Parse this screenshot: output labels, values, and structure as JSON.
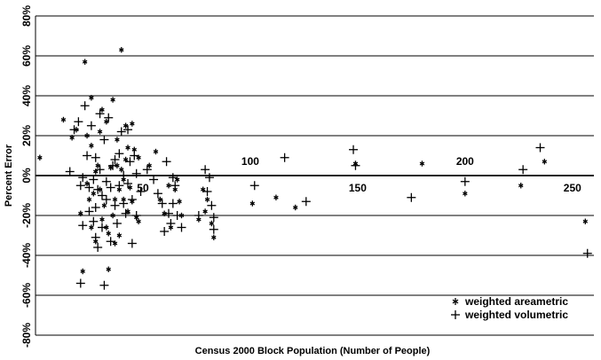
{
  "chart_data": {
    "type": "scatter",
    "xlabel": "Census 2000 Block Population (Number of People)",
    "ylabel": "Percent Error",
    "xlim": [
      0,
      260
    ],
    "ylim": [
      -80,
      80
    ],
    "x_ticks": [
      50,
      100,
      150,
      200,
      250
    ],
    "x_tick_labels": [
      "50",
      "100",
      "150",
      "200",
      "250"
    ],
    "y_ticks": [
      80,
      60,
      40,
      20,
      0,
      -20,
      -40,
      -60,
      -80
    ],
    "y_tick_labels": [
      "80%",
      "60%",
      "40%",
      "20%",
      "0%",
      "-20%",
      "-40%",
      "-60%",
      "-80%"
    ],
    "grid": true,
    "legend_position": "bottom-right",
    "series": [
      {
        "name": "weighted areametric",
        "marker": "asterisk",
        "points": [
          [
            2,
            9
          ],
          [
            13,
            28
          ],
          [
            17,
            19
          ],
          [
            19,
            23
          ],
          [
            21,
            -19
          ],
          [
            22,
            -48
          ],
          [
            23,
            57
          ],
          [
            24,
            20
          ],
          [
            24,
            -4
          ],
          [
            25,
            -12
          ],
          [
            26,
            15
          ],
          [
            26,
            39
          ],
          [
            26,
            -26
          ],
          [
            27,
            -9
          ],
          [
            28,
            -33
          ],
          [
            28,
            2
          ],
          [
            29,
            5
          ],
          [
            30,
            -7
          ],
          [
            30,
            22
          ],
          [
            31,
            33
          ],
          [
            31,
            -22
          ],
          [
            32,
            -15
          ],
          [
            33,
            27
          ],
          [
            33,
            -26
          ],
          [
            34,
            -47
          ],
          [
            34,
            -29
          ],
          [
            35,
            4
          ],
          [
            36,
            -20
          ],
          [
            36,
            38
          ],
          [
            37,
            -12
          ],
          [
            37,
            -34
          ],
          [
            38,
            5
          ],
          [
            38,
            18
          ],
          [
            39,
            -7
          ],
          [
            39,
            -30
          ],
          [
            40,
            63
          ],
          [
            40,
            3
          ],
          [
            41,
            -12
          ],
          [
            41,
            -2
          ],
          [
            42,
            25
          ],
          [
            42,
            8
          ],
          [
            43,
            -18
          ],
          [
            43,
            14
          ],
          [
            44,
            -6
          ],
          [
            45,
            26
          ],
          [
            45,
            -13
          ],
          [
            46,
            13
          ],
          [
            47,
            -21
          ],
          [
            48,
            9
          ],
          [
            48,
            -23
          ],
          [
            53,
            5
          ],
          [
            56,
            12
          ],
          [
            58,
            -12
          ],
          [
            60,
            -19
          ],
          [
            62,
            -5
          ],
          [
            63,
            -26
          ],
          [
            65,
            -7
          ],
          [
            66,
            -2
          ],
          [
            67,
            -13
          ],
          [
            68,
            -20
          ],
          [
            76,
            -22
          ],
          [
            78,
            -7
          ],
          [
            79,
            -18
          ],
          [
            80,
            -12
          ],
          [
            82,
            -24
          ],
          [
            83,
            -31
          ],
          [
            101,
            -14
          ],
          [
            112,
            -11
          ],
          [
            121,
            -16
          ],
          [
            149,
            6
          ],
          [
            180,
            6
          ],
          [
            200,
            -9
          ],
          [
            226,
            -5
          ],
          [
            237,
            7
          ],
          [
            256,
            -23
          ]
        ]
      },
      {
        "name": "weighted volumetric",
        "marker": "plus",
        "points": [
          [
            16,
            2
          ],
          [
            18,
            23
          ],
          [
            20,
            27
          ],
          [
            21,
            -5
          ],
          [
            21,
            -54
          ],
          [
            22,
            -1
          ],
          [
            22,
            -25
          ],
          [
            23,
            35
          ],
          [
            24,
            10
          ],
          [
            25,
            -6
          ],
          [
            25,
            -18
          ],
          [
            26,
            25
          ],
          [
            27,
            -2
          ],
          [
            27,
            -23
          ],
          [
            28,
            -31
          ],
          [
            28,
            9
          ],
          [
            28,
            -16
          ],
          [
            29,
            -36
          ],
          [
            29,
            -7
          ],
          [
            30,
            3
          ],
          [
            30,
            31
          ],
          [
            31,
            -10
          ],
          [
            31,
            -26
          ],
          [
            32,
            -55
          ],
          [
            32,
            18
          ],
          [
            33,
            -12
          ],
          [
            33,
            -3
          ],
          [
            34,
            29
          ],
          [
            35,
            -6
          ],
          [
            35,
            -33
          ],
          [
            36,
            5
          ],
          [
            37,
            -15
          ],
          [
            37,
            8
          ],
          [
            38,
            -24
          ],
          [
            39,
            -5
          ],
          [
            39,
            11
          ],
          [
            40,
            22
          ],
          [
            41,
            -14
          ],
          [
            41,
            0
          ],
          [
            42,
            -19
          ],
          [
            43,
            23
          ],
          [
            43,
            -4
          ],
          [
            44,
            7
          ],
          [
            45,
            -12
          ],
          [
            45,
            -34
          ],
          [
            46,
            10
          ],
          [
            47,
            1
          ],
          [
            47,
            -20
          ],
          [
            49,
            -8
          ],
          [
            52,
            3
          ],
          [
            55,
            -2
          ],
          [
            57,
            -9
          ],
          [
            59,
            -14
          ],
          [
            60,
            -28
          ],
          [
            61,
            7
          ],
          [
            62,
            -19
          ],
          [
            63,
            -24
          ],
          [
            64,
            -1
          ],
          [
            64,
            -14
          ],
          [
            65,
            -5
          ],
          [
            66,
            -20
          ],
          [
            68,
            -26
          ],
          [
            76,
            -20
          ],
          [
            79,
            3
          ],
          [
            80,
            -8
          ],
          [
            81,
            -1
          ],
          [
            82,
            -15
          ],
          [
            83,
            -21
          ],
          [
            83,
            -27
          ],
          [
            102,
            -5
          ],
          [
            116,
            9
          ],
          [
            126,
            -13
          ],
          [
            148,
            13
          ],
          [
            149,
            5
          ],
          [
            175,
            -11
          ],
          [
            200,
            -3
          ],
          [
            227,
            3
          ],
          [
            235,
            14
          ],
          [
            257,
            -39
          ]
        ]
      }
    ]
  }
}
